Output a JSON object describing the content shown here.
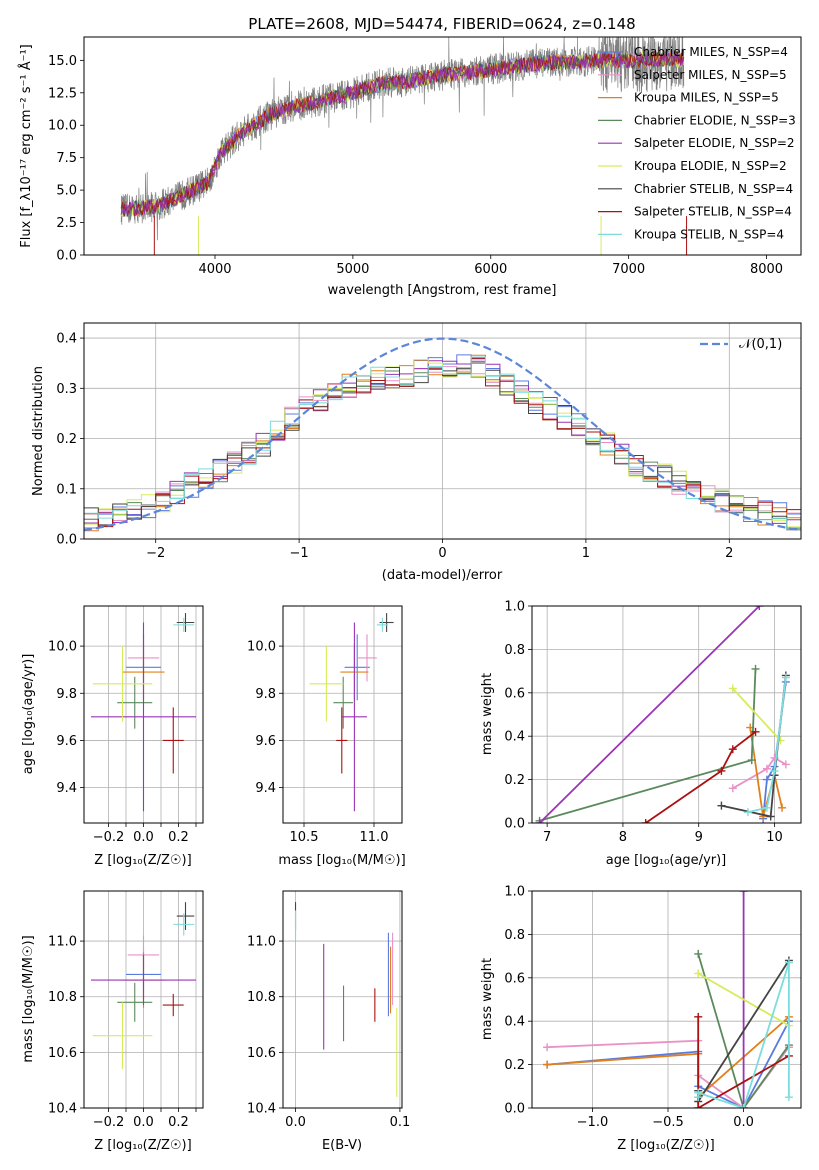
{
  "colors": {
    "chabrier_miles": "#5b7be0",
    "salpeter_miles": "#e892c6",
    "kroupa_miles": "#e0801c",
    "chabrier_elodie": "#5a8a5c",
    "salpeter_elodie": "#9b34b6",
    "kroupa_elodie": "#d6ec5a",
    "chabrier_stelib": "#444444",
    "salpeter_stelib": "#aa1111",
    "kroupa_stelib": "#7ddcdc",
    "normal_curve": "#5b86d9",
    "data": "#808080"
  },
  "chart_data": [
    {
      "id": "spectrum",
      "type": "line",
      "title": "PLATE=2608, MJD=54474, FIBERID=0624, z=0.148",
      "xlabel": "wavelength [Angstrom, rest frame]",
      "ylabel": "Flux [f_λ10⁻¹⁷ erg cm⁻² s⁻¹ Å⁻¹]",
      "xlim": [
        3050,
        8250
      ],
      "ylim": [
        0,
        16.8
      ],
      "xticks": [
        4000,
        5000,
        6000,
        7000,
        8000
      ],
      "yticks": [
        0.0,
        2.5,
        5.0,
        7.5,
        10.0,
        12.5,
        15.0
      ],
      "grid": false,
      "legend_position": "upper-right",
      "legend": [
        {
          "label": "Chabrier MILES, N_SSP=4",
          "color_key": "chabrier_miles"
        },
        {
          "label": "Salpeter MILES, N_SSP=5",
          "color_key": "salpeter_miles"
        },
        {
          "label": "Kroupa MILES, N_SSP=5",
          "color_key": "kroupa_miles"
        },
        {
          "label": "Chabrier ELODIE, N_SSP=3",
          "color_key": "chabrier_elodie"
        },
        {
          "label": "Salpeter ELODIE, N_SSP=2",
          "color_key": "salpeter_elodie"
        },
        {
          "label": "Kroupa ELODIE, N_SSP=2",
          "color_key": "kroupa_elodie"
        },
        {
          "label": "Chabrier STELIB, N_SSP=4",
          "color_key": "chabrier_stelib"
        },
        {
          "label": "Salpeter STELIB, N_SSP=4",
          "color_key": "salpeter_stelib"
        },
        {
          "label": "Kroupa STELIB, N_SSP=4",
          "color_key": "kroupa_stelib"
        }
      ],
      "continuum": {
        "x": [
          3320,
          3450,
          3600,
          3800,
          3950,
          4050,
          4200,
          4400,
          4600,
          4800,
          5000,
          5200,
          5400,
          5600,
          5800,
          6000,
          6200,
          6400,
          6600,
          6800,
          7000,
          7200,
          7400
        ],
        "y": [
          3.5,
          3.6,
          3.8,
          4.8,
          5.6,
          8.0,
          9.5,
          10.8,
          11.5,
          12.0,
          12.5,
          13.2,
          13.4,
          13.8,
          14.0,
          14.3,
          14.6,
          14.8,
          14.9,
          15.0,
          15.0,
          15.1,
          15.1
        ]
      }
    },
    {
      "id": "residual_distribution",
      "type": "line",
      "xlabel": "(data-model)/error",
      "ylabel": "Normed distribution",
      "xlim": [
        -2.5,
        2.5
      ],
      "ylim": [
        0,
        0.43
      ],
      "xticks": [
        -2,
        -1,
        0,
        1,
        2
      ],
      "yticks": [
        0.0,
        0.1,
        0.2,
        0.3,
        0.4
      ],
      "grid": true,
      "legend_position": "upper-right",
      "legend": [
        {
          "label": "𝒩(0,1)",
          "color_key": "normal_curve"
        }
      ],
      "bin_width": 0.1,
      "envelope": {
        "x": [
          -2.5,
          -2.2,
          -2.0,
          -1.8,
          -1.6,
          -1.4,
          -1.2,
          -1.0,
          -0.8,
          -0.6,
          -0.4,
          -0.2,
          0.0,
          0.2,
          0.4,
          0.6,
          0.8,
          1.0,
          1.2,
          1.4,
          1.6,
          1.8,
          2.0,
          2.2,
          2.5
        ],
        "y": [
          0.035,
          0.05,
          0.07,
          0.1,
          0.13,
          0.16,
          0.2,
          0.25,
          0.29,
          0.31,
          0.32,
          0.33,
          0.34,
          0.35,
          0.32,
          0.28,
          0.25,
          0.22,
          0.18,
          0.14,
          0.12,
          0.09,
          0.07,
          0.055,
          0.04
        ]
      }
    },
    {
      "id": "age_vs_Z",
      "type": "scatter",
      "xlabel": "Z [log₁₀(Z/Z☉)]",
      "ylabel": "age  [log₁₀(age/yr)]",
      "xlim": [
        -0.34,
        0.34
      ],
      "ylim": [
        9.25,
        10.17
      ],
      "xticks": [
        -0.2,
        -0.1,
        0.0,
        0.1,
        0.2,
        0.3
      ],
      "xtick_labels": [
        "−0.2",
        "",
        "0.0",
        "",
        "0.2",
        ""
      ],
      "yticks": [
        9.4,
        9.6,
        9.8,
        10.0
      ],
      "grid": true,
      "points": [
        {
          "color_key": "chabrier_miles",
          "x": 0.0,
          "xerr": 0.1,
          "y": 9.91,
          "yerr": 0.14
        },
        {
          "color_key": "salpeter_miles",
          "x": 0.0,
          "xerr": 0.09,
          "y": 9.95,
          "yerr": 0.1
        },
        {
          "color_key": "kroupa_miles",
          "x": 0.0,
          "xerr": 0.12,
          "y": 9.89,
          "yerr": 0.12
        },
        {
          "color_key": "chabrier_elodie",
          "x": -0.05,
          "xerr": 0.1,
          "y": 9.76,
          "yerr": 0.11
        },
        {
          "color_key": "salpeter_elodie",
          "x": 0.0,
          "xerr": 0.3,
          "y": 9.7,
          "yerr": 0.4
        },
        {
          "color_key": "kroupa_elodie",
          "x": -0.12,
          "xerr": 0.17,
          "y": 9.84,
          "yerr": 0.16
        },
        {
          "color_key": "chabrier_stelib",
          "x": 0.24,
          "xerr": 0.05,
          "y": 10.1,
          "yerr": 0.04
        },
        {
          "color_key": "salpeter_stelib",
          "x": 0.17,
          "xerr": 0.06,
          "y": 9.6,
          "yerr": 0.14
        },
        {
          "color_key": "kroupa_stelib",
          "x": 0.23,
          "xerr": 0.06,
          "y": 10.09,
          "yerr": 0.03
        }
      ]
    },
    {
      "id": "age_vs_mass",
      "type": "scatter",
      "xlabel": "mass [log₁₀(M/M☉)]",
      "ylabel": "",
      "xlim": [
        10.35,
        11.2
      ],
      "ylim": [
        9.25,
        10.17
      ],
      "xticks": [
        10.5,
        11.0
      ],
      "yticks": [
        9.4,
        9.6,
        9.8,
        10.0
      ],
      "grid": true,
      "points": [
        {
          "color_key": "chabrier_miles",
          "x": 10.88,
          "xerr": 0.09,
          "y": 9.91,
          "yerr": 0.14
        },
        {
          "color_key": "salpeter_miles",
          "x": 10.95,
          "xerr": 0.07,
          "y": 9.95,
          "yerr": 0.1
        },
        {
          "color_key": "kroupa_miles",
          "x": 10.86,
          "xerr": 0.1,
          "y": 9.89,
          "yerr": 0.12
        },
        {
          "color_key": "chabrier_elodie",
          "x": 10.78,
          "xerr": 0.07,
          "y": 9.76,
          "yerr": 0.11
        },
        {
          "color_key": "salpeter_elodie",
          "x": 10.86,
          "xerr": 0.09,
          "y": 9.7,
          "yerr": 0.4
        },
        {
          "color_key": "kroupa_elodie",
          "x": 10.66,
          "xerr": 0.12,
          "y": 9.84,
          "yerr": 0.16
        },
        {
          "color_key": "chabrier_stelib",
          "x": 11.09,
          "xerr": 0.05,
          "y": 10.1,
          "yerr": 0.04
        },
        {
          "color_key": "salpeter_stelib",
          "x": 10.77,
          "xerr": 0.04,
          "y": 9.6,
          "yerr": 0.14
        },
        {
          "color_key": "kroupa_stelib",
          "x": 11.06,
          "xerr": 0.04,
          "y": 10.09,
          "yerr": 0.03
        }
      ]
    },
    {
      "id": "weight_vs_age",
      "type": "line",
      "xlabel": "age  [log₁₀(age/yr)]",
      "ylabel": "mass weight",
      "xlim": [
        6.8,
        10.35
      ],
      "ylim": [
        0.0,
        1.0
      ],
      "xticks": [
        7,
        8,
        9,
        10
      ],
      "yticks": [
        0.0,
        0.2,
        0.4,
        0.6,
        0.8,
        1.0
      ],
      "grid": true,
      "series": [
        {
          "color_key": "chabrier_miles",
          "x": [
            9.85,
            9.9,
            10.0,
            10.15
          ],
          "y": [
            0.02,
            0.2,
            0.26,
            0.65
          ]
        },
        {
          "color_key": "salpeter_miles",
          "x": [
            9.45,
            9.9,
            10.0,
            10.15
          ],
          "y": [
            0.16,
            0.25,
            0.3,
            0.27
          ]
        },
        {
          "color_key": "kroupa_miles",
          "x": [
            9.68,
            9.85,
            10.0,
            10.1
          ],
          "y": [
            0.44,
            0.03,
            0.22,
            0.07
          ]
        },
        {
          "color_key": "chabrier_elodie",
          "x": [
            6.9,
            9.7,
            9.75
          ],
          "y": [
            0.01,
            0.29,
            0.71
          ]
        },
        {
          "color_key": "salpeter_elodie",
          "x": [
            6.9,
            9.8
          ],
          "y": [
            0.0,
            1.0
          ]
        },
        {
          "color_key": "kroupa_elodie",
          "x": [
            9.45,
            10.08
          ],
          "y": [
            0.62,
            0.38
          ]
        },
        {
          "color_key": "chabrier_stelib",
          "x": [
            9.3,
            9.95,
            10.0,
            10.15
          ],
          "y": [
            0.08,
            0.03,
            0.22,
            0.68
          ]
        },
        {
          "color_key": "salpeter_stelib",
          "x": [
            8.3,
            9.3,
            9.45,
            9.75
          ],
          "y": [
            0.0,
            0.24,
            0.34,
            0.42
          ]
        },
        {
          "color_key": "kroupa_stelib",
          "x": [
            9.65,
            9.9,
            10.0,
            10.15
          ],
          "y": [
            0.05,
            0.07,
            0.24,
            0.67
          ]
        }
      ]
    },
    {
      "id": "mass_vs_Z",
      "type": "scatter",
      "xlabel": "Z [log₁₀(Z/Z☉)]",
      "ylabel": "mass [log₁₀(M/M☉)]",
      "xlim": [
        -0.34,
        0.34
      ],
      "ylim": [
        10.4,
        11.18
      ],
      "xticks": [
        -0.2,
        -0.1,
        0.0,
        0.1,
        0.2,
        0.3
      ],
      "xtick_labels": [
        "−0.2",
        "",
        "0.0",
        "",
        "0.2",
        ""
      ],
      "yticks": [
        10.4,
        10.6,
        10.8,
        11.0
      ],
      "grid": true,
      "points": [
        {
          "color_key": "chabrier_miles",
          "x": 0.0,
          "xerr": 0.1,
          "y": 10.88,
          "yerr": 0.09
        },
        {
          "color_key": "salpeter_miles",
          "x": 0.0,
          "xerr": 0.09,
          "y": 10.95,
          "yerr": 0.07
        },
        {
          "color_key": "kroupa_miles",
          "x": 0.0,
          "xerr": 0.12,
          "y": 10.86,
          "yerr": 0.1
        },
        {
          "color_key": "chabrier_elodie",
          "x": -0.05,
          "xerr": 0.1,
          "y": 10.78,
          "yerr": 0.07
        },
        {
          "color_key": "salpeter_elodie",
          "x": 0.0,
          "xerr": 0.3,
          "y": 10.86,
          "yerr": 0.09
        },
        {
          "color_key": "kroupa_elodie",
          "x": -0.12,
          "xerr": 0.17,
          "y": 10.66,
          "yerr": 0.12
        },
        {
          "color_key": "chabrier_stelib",
          "x": 0.24,
          "xerr": 0.05,
          "y": 11.09,
          "yerr": 0.05
        },
        {
          "color_key": "salpeter_stelib",
          "x": 0.17,
          "xerr": 0.06,
          "y": 10.77,
          "yerr": 0.04
        },
        {
          "color_key": "kroupa_stelib",
          "x": 0.23,
          "xerr": 0.06,
          "y": 11.06,
          "yerr": 0.04
        }
      ]
    },
    {
      "id": "mass_vs_ebv",
      "type": "scatter",
      "xlabel": "E(B-V)",
      "ylabel": "",
      "xlim": [
        -0.012,
        0.102
      ],
      "ylim": [
        10.4,
        11.18
      ],
      "xticks": [
        0.0,
        0.1
      ],
      "yticks": [
        10.4,
        10.6,
        10.8,
        11.0
      ],
      "grid": true,
      "points": [
        {
          "color_key": "chabrier_miles",
          "x": 0.089,
          "xerr": 0,
          "y": 10.88,
          "yerr": 0.15
        },
        {
          "color_key": "salpeter_miles",
          "x": 0.093,
          "xerr": 0,
          "y": 10.9,
          "yerr": 0.13
        },
        {
          "color_key": "kroupa_miles",
          "x": 0.091,
          "xerr": 0,
          "y": 10.86,
          "yerr": 0.12
        },
        {
          "color_key": "chabrier_elodie",
          "x": 0.046,
          "xerr": 0,
          "y": 10.74,
          "yerr": 0.1
        },
        {
          "color_key": "salpeter_elodie",
          "x": 0.027,
          "xerr": 0,
          "y": 10.8,
          "yerr": 0.19
        },
        {
          "color_key": "kroupa_elodie",
          "x": 0.097,
          "xerr": 0,
          "y": 10.6,
          "yerr": 0.16
        },
        {
          "color_key": "chabrier_stelib",
          "x": 0.0,
          "xerr": 0,
          "y": 11.09,
          "yerr": 0.05
        },
        {
          "color_key": "salpeter_stelib",
          "x": 0.076,
          "xerr": 0,
          "y": 10.77,
          "yerr": 0.06
        },
        {
          "color_key": "kroupa_stelib",
          "x": 0.0,
          "xerr": 0,
          "y": 11.06,
          "yerr": 0.05
        }
      ]
    },
    {
      "id": "weight_vs_Z",
      "type": "line",
      "xlabel": "Z [log₁₀(Z/Z☉)]",
      "ylabel": "mass weight",
      "xlim": [
        -1.4,
        0.38
      ],
      "ylim": [
        0.0,
        1.0
      ],
      "xticks": [
        -1.0,
        -0.5,
        0.0
      ],
      "xtick_labels": [
        "−1.0",
        "−0.5",
        "0.0"
      ],
      "yticks": [
        0.0,
        0.2,
        0.4,
        0.6,
        0.8,
        1.0
      ],
      "grid": true,
      "series": [
        {
          "color_key": "chabrier_miles",
          "x": [
            -1.3,
            -0.3,
            -0.3,
            0.0,
            0.3
          ],
          "y": [
            0.2,
            0.26,
            0.1,
            0.0,
            0.4
          ]
        },
        {
          "color_key": "salpeter_miles",
          "x": [
            -1.3,
            -0.3,
            -0.3,
            0.0,
            0.3
          ],
          "y": [
            0.28,
            0.31,
            0.15,
            0.0,
            0.28
          ]
        },
        {
          "color_key": "kroupa_miles",
          "x": [
            -1.3,
            -0.3,
            -0.3,
            0.3
          ],
          "y": [
            0.2,
            0.25,
            0.05,
            0.42
          ]
        },
        {
          "color_key": "chabrier_elodie",
          "x": [
            -0.3,
            0.0,
            0.3
          ],
          "y": [
            0.71,
            0.0,
            0.29
          ]
        },
        {
          "color_key": "salpeter_elodie",
          "x": [
            0.0,
            0.0
          ],
          "y": [
            0.0,
            1.0
          ]
        },
        {
          "color_key": "kroupa_elodie",
          "x": [
            -0.3,
            0.3
          ],
          "y": [
            0.62,
            0.38
          ]
        },
        {
          "color_key": "chabrier_stelib",
          "x": [
            -0.3,
            -0.3,
            0.3
          ],
          "y": [
            0.08,
            0.03,
            0.68
          ]
        },
        {
          "color_key": "salpeter_stelib",
          "x": [
            -0.3,
            -0.3,
            0.3
          ],
          "y": [
            0.42,
            0.0,
            0.24
          ]
        },
        {
          "color_key": "kroupa_stelib",
          "x": [
            -0.3,
            -0.3,
            0.0,
            0.3,
            0.3
          ],
          "y": [
            0.05,
            0.07,
            0.0,
            0.67,
            0.05
          ]
        }
      ]
    }
  ]
}
